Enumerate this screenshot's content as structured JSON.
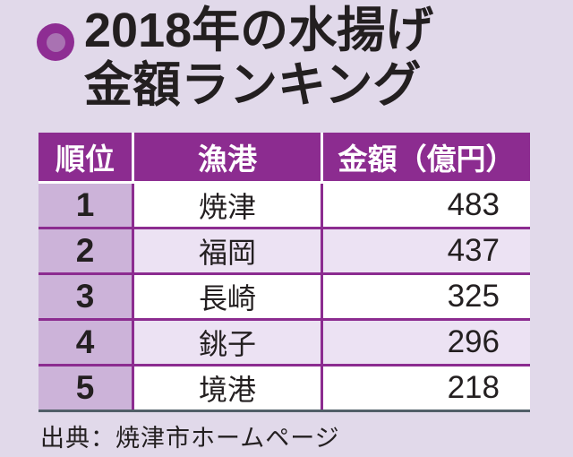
{
  "chart_data": {
    "type": "table",
    "title": "2018年の水揚げ金額ランキング",
    "columns": [
      "順位",
      "漁港",
      "金額（億円）"
    ],
    "rows": [
      [
        "1",
        "焼津",
        "483"
      ],
      [
        "2",
        "福岡",
        "437"
      ],
      [
        "3",
        "長崎",
        "325"
      ],
      [
        "4",
        "銚子",
        "296"
      ],
      [
        "5",
        "境港",
        "218"
      ]
    ],
    "source": "出典：焼津市ホームページ"
  },
  "title": {
    "line1": "2018年の水揚げ",
    "line2": "金額ランキング"
  },
  "table": {
    "headers": [
      "順位",
      "漁港",
      "金額（億円）"
    ]
  },
  "source": {
    "label": "出典：焼津市ホームページ"
  },
  "colors": {
    "page_background": "#e1d9ea",
    "header_background": "#8c2c90",
    "header_text": "#ffffff",
    "rank_column_background": "#ccb3d9",
    "row_alt_background": "#ece2f3",
    "row_background": "#ffffff",
    "grid_line": "#8c2c90",
    "table_bottom_line": "#515f68",
    "bullet_outer": "#8e2d93",
    "bullet_inner": "#a972b2",
    "text": "#231f20"
  }
}
